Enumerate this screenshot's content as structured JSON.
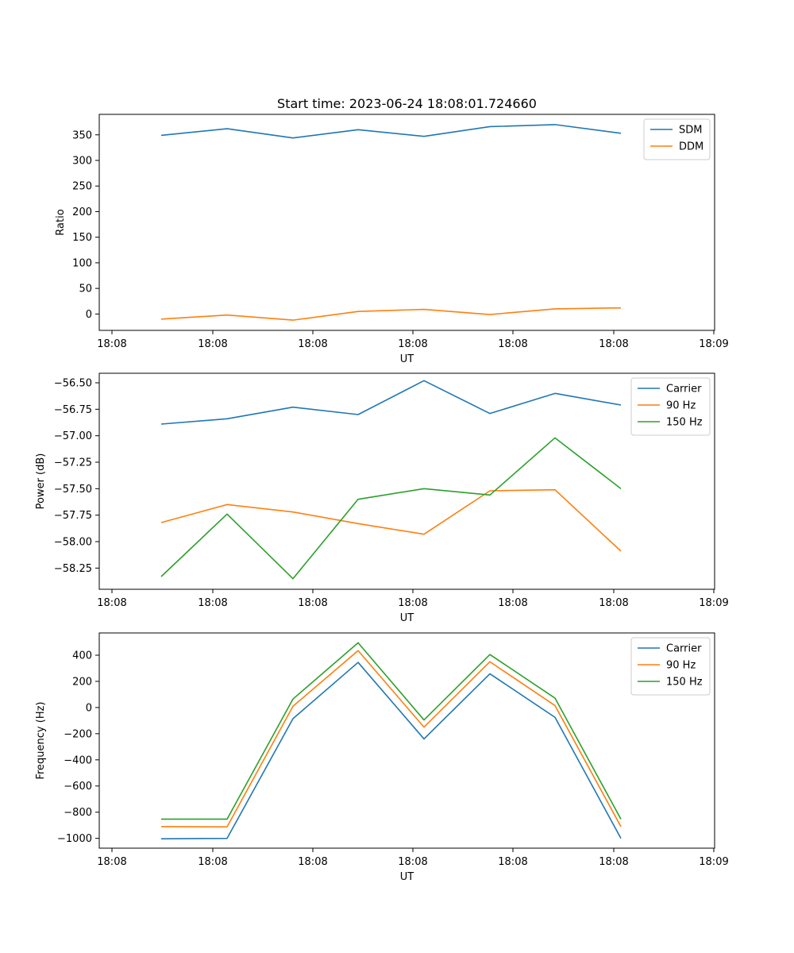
{
  "chart_data": [
    {
      "type": "line",
      "title": "Start time: 2023-06-24 18:08:01.724660",
      "xlabel": "UT",
      "ylabel": "Ratio",
      "x_ticks": [
        "18:08",
        "18:08",
        "18:08",
        "18:08",
        "18:08",
        "18:08",
        "18:08",
        "18:09"
      ],
      "y_ticks": [
        "0",
        "50",
        "100",
        "150",
        "200",
        "250",
        "300",
        "350"
      ],
      "ylim": [
        -32,
        390
      ],
      "legend_placement": "top-right",
      "series": [
        {
          "name": "SDM",
          "color": "#1f77b4",
          "values": [
            349,
            362,
            344,
            360,
            347,
            366,
            370,
            353
          ]
        },
        {
          "name": "DDM",
          "color": "#ff7f0e",
          "values": [
            -10,
            -2,
            -12,
            5,
            9,
            -1,
            10,
            12
          ]
        }
      ]
    },
    {
      "type": "line",
      "title": "",
      "xlabel": "UT",
      "ylabel": "Power (dB)",
      "x_ticks": [
        "18:08",
        "18:08",
        "18:08",
        "18:08",
        "18:08",
        "18:08",
        "18:08",
        "18:09"
      ],
      "y_ticks": [
        "−58.25",
        "−58.00",
        "−57.75",
        "−57.50",
        "−57.25",
        "−57.00",
        "−56.75",
        "−56.50"
      ],
      "ylim": [
        -58.45,
        -56.41
      ],
      "legend_placement": "top-right",
      "series": [
        {
          "name": "Carrier",
          "color": "#1f77b4",
          "values": [
            -56.89,
            -56.84,
            -56.73,
            -56.8,
            -56.48,
            -56.79,
            -56.6,
            -56.71
          ]
        },
        {
          "name": "90 Hz",
          "color": "#ff7f0e",
          "values": [
            -57.82,
            -57.65,
            -57.72,
            -57.83,
            -57.93,
            -57.52,
            -57.51,
            -58.09
          ]
        },
        {
          "name": "150 Hz",
          "color": "#2ca02c",
          "values": [
            -58.33,
            -57.74,
            -58.35,
            -57.6,
            -57.5,
            -57.56,
            -57.02,
            -57.5
          ]
        }
      ]
    },
    {
      "type": "line",
      "title": "",
      "xlabel": "UT",
      "ylabel": "Frequency (Hz)",
      "x_ticks": [
        "18:08",
        "18:08",
        "18:08",
        "18:08",
        "18:08",
        "18:08",
        "18:08",
        "18:09"
      ],
      "y_ticks": [
        "−1000",
        "−800",
        "−600",
        "−400",
        "−200",
        "0",
        "200",
        "400"
      ],
      "ylim": [
        -1075,
        570
      ],
      "legend_placement": "top-right",
      "series": [
        {
          "name": "Carrier",
          "color": "#1f77b4",
          "values": [
            -1003,
            -1000,
            -85,
            345,
            -240,
            258,
            -75,
            -1000
          ]
        },
        {
          "name": "90 Hz",
          "color": "#ff7f0e",
          "values": [
            -910,
            -912,
            10,
            435,
            -150,
            350,
            15,
            -910
          ]
        },
        {
          "name": "150 Hz",
          "color": "#2ca02c",
          "values": [
            -853,
            -853,
            65,
            495,
            -95,
            405,
            72,
            -853
          ]
        }
      ]
    }
  ]
}
